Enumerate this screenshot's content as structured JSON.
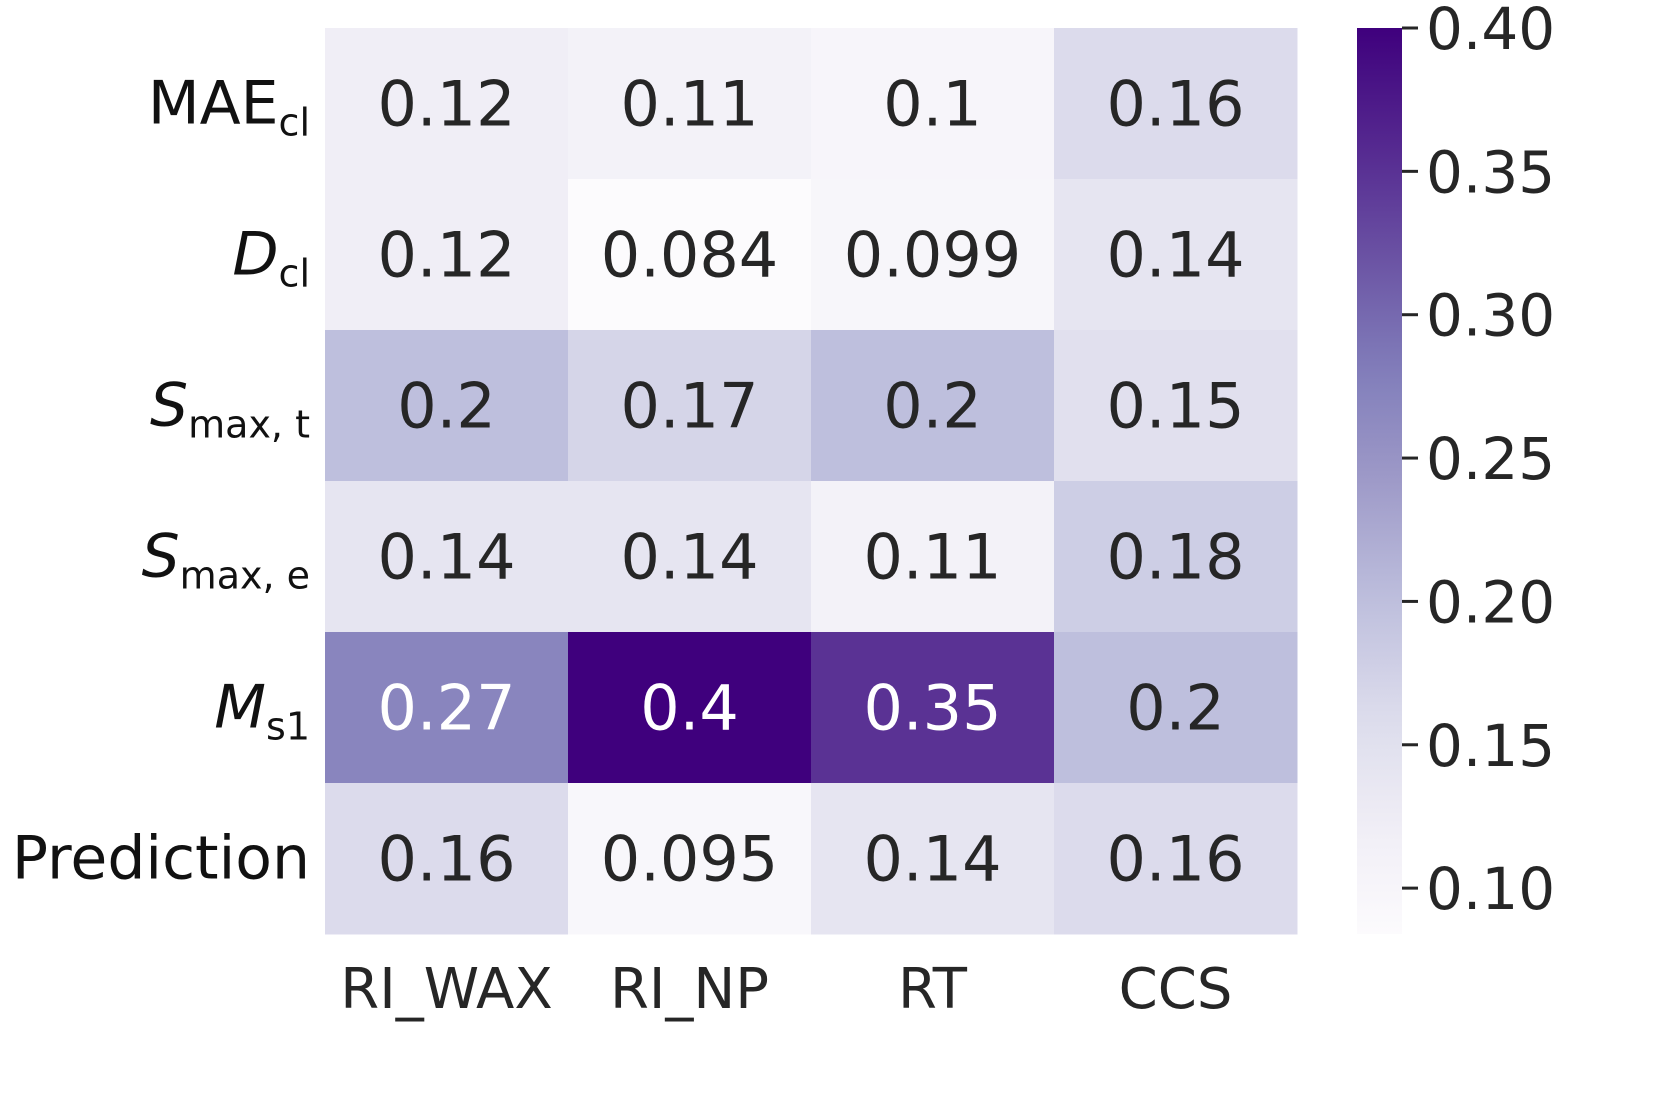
{
  "chart_data": {
    "type": "heatmap",
    "title": "",
    "xlabel": "",
    "ylabel": "",
    "columns": [
      "RI_WAX",
      "RI_NP",
      "RT",
      "CCS"
    ],
    "rows": [
      {
        "main": "MAE",
        "sub": "cl",
        "italic": false
      },
      {
        "main": "D",
        "sub": "cl",
        "italic": true
      },
      {
        "main": "S",
        "sub": "max, t",
        "italic": true
      },
      {
        "main": "S",
        "sub": "max, e",
        "italic": true
      },
      {
        "main": "M",
        "sub": "s1",
        "italic": true
      },
      {
        "main": "Prediction",
        "sub": "",
        "italic": false
      }
    ],
    "values": [
      [
        0.12,
        0.11,
        0.1,
        0.16
      ],
      [
        0.12,
        0.084,
        0.099,
        0.14
      ],
      [
        0.2,
        0.17,
        0.2,
        0.15
      ],
      [
        0.14,
        0.14,
        0.11,
        0.18
      ],
      [
        0.27,
        0.4,
        0.35,
        0.2
      ],
      [
        0.16,
        0.095,
        0.14,
        0.16
      ]
    ],
    "cell_labels": [
      [
        "0.12",
        "0.11",
        "0.1",
        "0.16"
      ],
      [
        "0.12",
        "0.084",
        "0.099",
        "0.14"
      ],
      [
        "0.2",
        "0.17",
        "0.2",
        "0.15"
      ],
      [
        "0.14",
        "0.14",
        "0.11",
        "0.18"
      ],
      [
        "0.27",
        "0.4",
        "0.35",
        "0.2"
      ],
      [
        "0.16",
        "0.095",
        "0.14",
        "0.16"
      ]
    ],
    "colorbar": {
      "colormap": "Purples",
      "vmin": 0.084,
      "vmax": 0.4,
      "ticks": [
        0.1,
        0.15,
        0.2,
        0.25,
        0.3,
        0.35,
        0.4
      ],
      "tick_labels": [
        "0.10",
        "0.15",
        "0.20",
        "0.25",
        "0.30",
        "0.35",
        "0.40"
      ],
      "placement": "right"
    },
    "colors": {
      "low": "#fcfbfd",
      "high": "#3f007d",
      "text_dark": "#262626",
      "text_light": "#ffffff"
    }
  }
}
